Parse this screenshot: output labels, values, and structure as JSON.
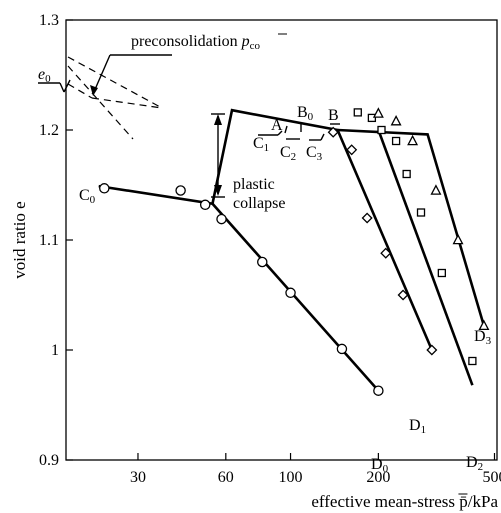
{
  "chart_data": {
    "type": "scatter",
    "title": "",
    "xlabel": "effective mean-stress p̄/kPa",
    "ylabel": "void ratio e",
    "x_scale": "log",
    "xlim": [
      17,
      510
    ],
    "ylim": [
      0.9,
      1.3
    ],
    "x_ticks": [
      30,
      60,
      100,
      200,
      500
    ],
    "x_tick_labels": [
      "30",
      "60",
      "100",
      "200",
      "500"
    ],
    "y_ticks": [
      0.9,
      1.0,
      1.1,
      1.2,
      1.3
    ],
    "y_tick_labels": [
      "0.9",
      "1",
      "1.1",
      "1.2",
      "1.3"
    ],
    "grid": false,
    "series": [
      {
        "marker": "circle",
        "points": [
          {
            "x": 23,
            "y": 1.147
          },
          {
            "x": 42,
            "y": 1.145
          },
          {
            "x": 51,
            "y": 1.132
          },
          {
            "x": 58,
            "y": 1.119
          },
          {
            "x": 80,
            "y": 1.08
          },
          {
            "x": 100,
            "y": 1.052
          },
          {
            "x": 150,
            "y": 1.001
          },
          {
            "x": 200,
            "y": 0.963
          }
        ]
      },
      {
        "marker": "diamond",
        "points": [
          {
            "x": 140,
            "y": 1.198
          },
          {
            "x": 162,
            "y": 1.182
          },
          {
            "x": 183,
            "y": 1.12
          },
          {
            "x": 212,
            "y": 1.088
          },
          {
            "x": 243,
            "y": 1.05
          },
          {
            "x": 305,
            "y": 1.0
          }
        ]
      },
      {
        "marker": "square",
        "points": [
          {
            "x": 170,
            "y": 1.216
          },
          {
            "x": 190,
            "y": 1.211
          },
          {
            "x": 205,
            "y": 1.2
          },
          {
            "x": 230,
            "y": 1.19
          },
          {
            "x": 250,
            "y": 1.16
          },
          {
            "x": 280,
            "y": 1.125
          },
          {
            "x": 330,
            "y": 1.07
          },
          {
            "x": 420,
            "y": 0.99
          }
        ]
      },
      {
        "marker": "triangle",
        "points": [
          {
            "x": 200,
            "y": 1.215
          },
          {
            "x": 230,
            "y": 1.208
          },
          {
            "x": 262,
            "y": 1.19
          },
          {
            "x": 315,
            "y": 1.145
          },
          {
            "x": 375,
            "y": 1.1
          },
          {
            "x": 460,
            "y": 1.022
          }
        ]
      }
    ],
    "lines": [
      {
        "name": "C0-D0",
        "points": [
          {
            "x": 22,
            "y": 1.149
          },
          {
            "x": 54,
            "y": 1.133
          },
          {
            "x": 200,
            "y": 0.963
          }
        ]
      },
      {
        "name": "collapse-D1",
        "points": [
          {
            "x": 54,
            "y": 1.133
          },
          {
            "x": 63,
            "y": 1.218
          },
          {
            "x": 145,
            "y": 1.2
          },
          {
            "x": 305,
            "y": 1.0
          }
        ]
      },
      {
        "name": "D2",
        "points": [
          {
            "x": 200,
            "y": 1.2
          },
          {
            "x": 420,
            "y": 0.968
          }
        ]
      },
      {
        "name": "D3",
        "points": [
          {
            "x": 145,
            "y": 1.2
          },
          {
            "x": 295,
            "y": 1.196
          },
          {
            "x": 460,
            "y": 1.022
          }
        ]
      }
    ],
    "labels": {
      "e0": "e",
      "e0_sub": "0",
      "preconsolidation_text": "preconsolidation ",
      "preconsolidation_symbol": "p",
      "preconsolidation_sub": "co",
      "A": "A",
      "B0": "B",
      "B0_sub": "0",
      "B": "B",
      "C0": "C",
      "C0_sub": "0",
      "C1": "C",
      "C1_sub": "1",
      "C2": "C",
      "C2_sub": "2",
      "C3": "C",
      "C3_sub": "3",
      "D0": "D",
      "D0_sub": "0",
      "D1": "D",
      "D1_sub": "1",
      "D2": "D",
      "D2_sub": "2",
      "D3": "D",
      "D3_sub": "3",
      "plastic": "plastic",
      "collapse": "collapse"
    }
  }
}
